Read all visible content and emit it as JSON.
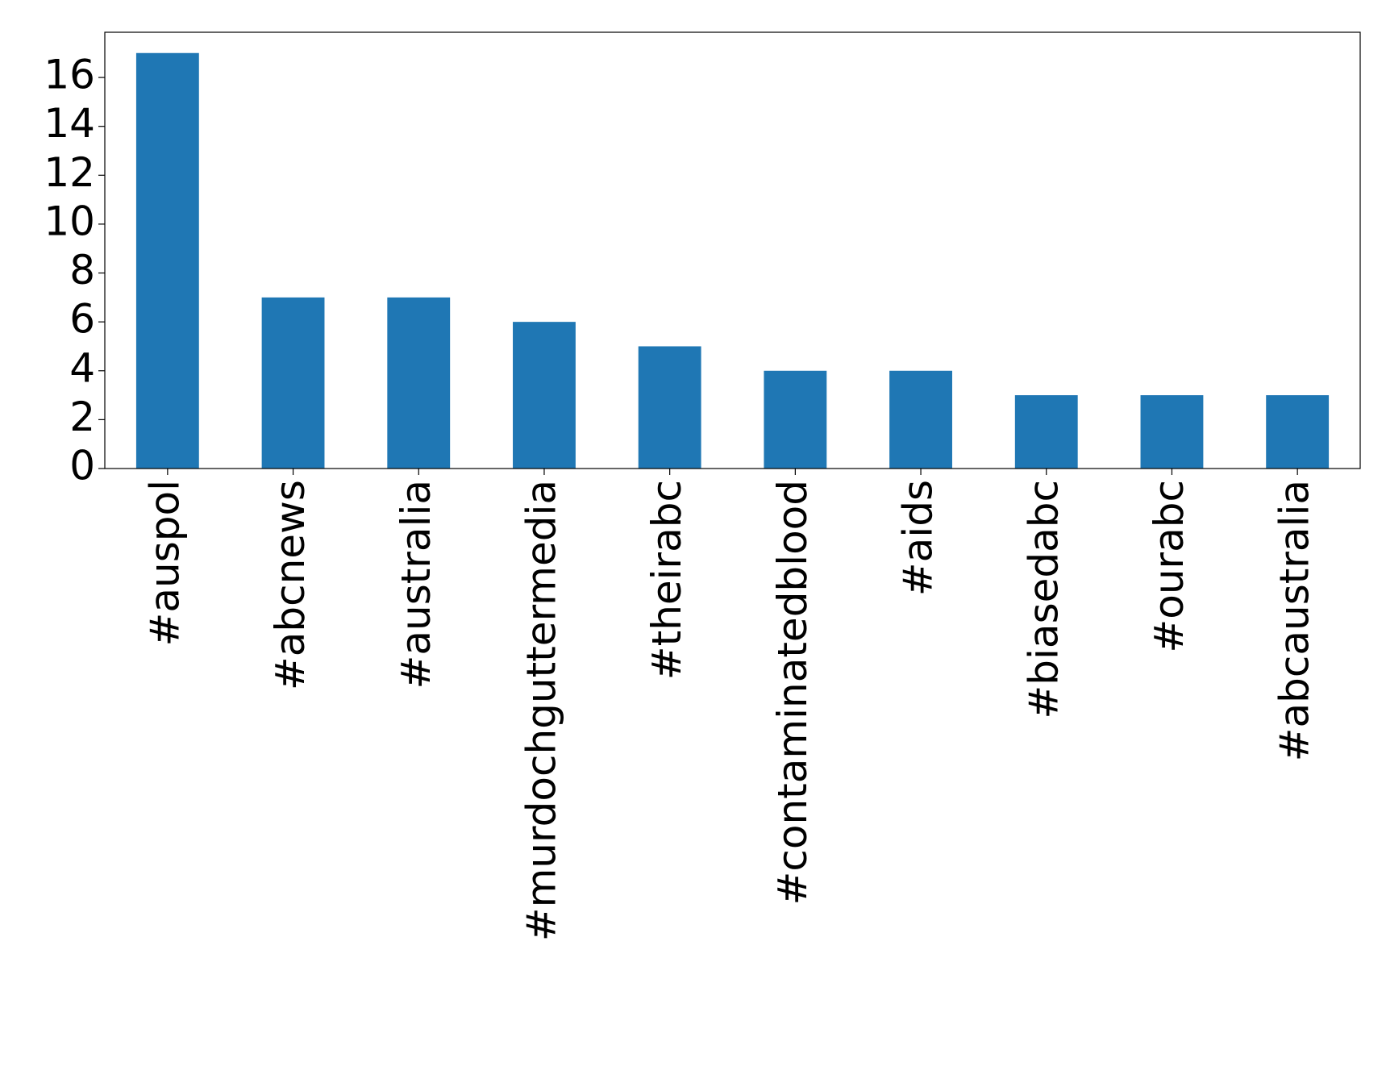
{
  "chart_data": {
    "type": "bar",
    "categories": [
      "#auspol",
      "#abcnews",
      "#australia",
      "#murdochguttermedia",
      "#theirabc",
      "#contaminatedblood",
      "#aids",
      "#biasedabc",
      "#ourabc",
      "#abcaustralia"
    ],
    "values": [
      17,
      7,
      7,
      6,
      5,
      4,
      4,
      3,
      3,
      3
    ],
    "color": "#1f77b4",
    "ylim": [
      0,
      17.85
    ],
    "yticks": [
      0,
      2,
      4,
      6,
      8,
      10,
      12,
      14,
      16
    ],
    "grid": false
  }
}
